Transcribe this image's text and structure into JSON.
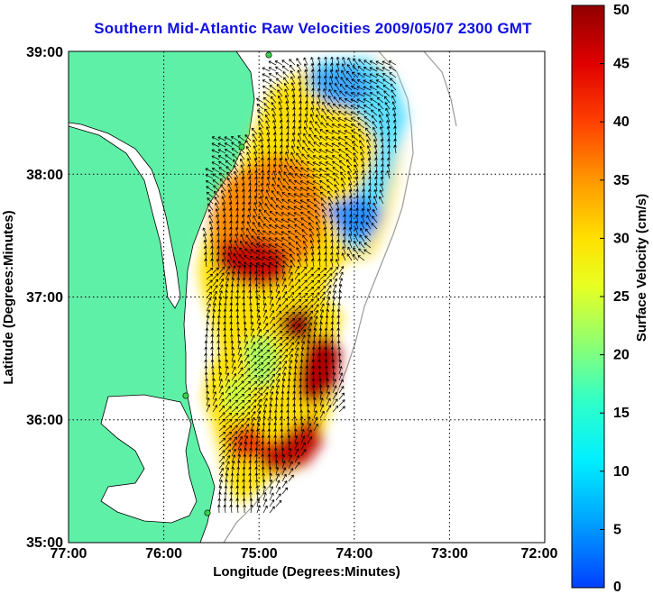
{
  "title": "Southern Mid-Atlantic Raw Velocities 2009/05/07 2300 GMT",
  "x_axis": {
    "label": "Longitude (Degrees:Minutes)",
    "ticks": [
      "77:00",
      "76:00",
      "75:00",
      "74:00",
      "73:00",
      "72:00"
    ]
  },
  "y_axis": {
    "label": "Latitude (Degrees:Minutes)",
    "ticks": [
      "39:00",
      "38:00",
      "37:00",
      "36:00",
      "35:00"
    ]
  },
  "colorbar": {
    "label": "Surface Velocity (cm/s)",
    "ticks": [
      "50",
      "45",
      "40",
      "35",
      "30",
      "25",
      "20",
      "15",
      "10",
      "5",
      "0"
    ],
    "range": [
      0,
      50
    ]
  },
  "colors": {
    "land": "#5ff0a8",
    "title": "#1010e0",
    "grid": "#000000"
  },
  "bounds": {
    "lon": [
      -77,
      -72
    ],
    "lat": [
      35,
      39
    ]
  },
  "grid": true
}
